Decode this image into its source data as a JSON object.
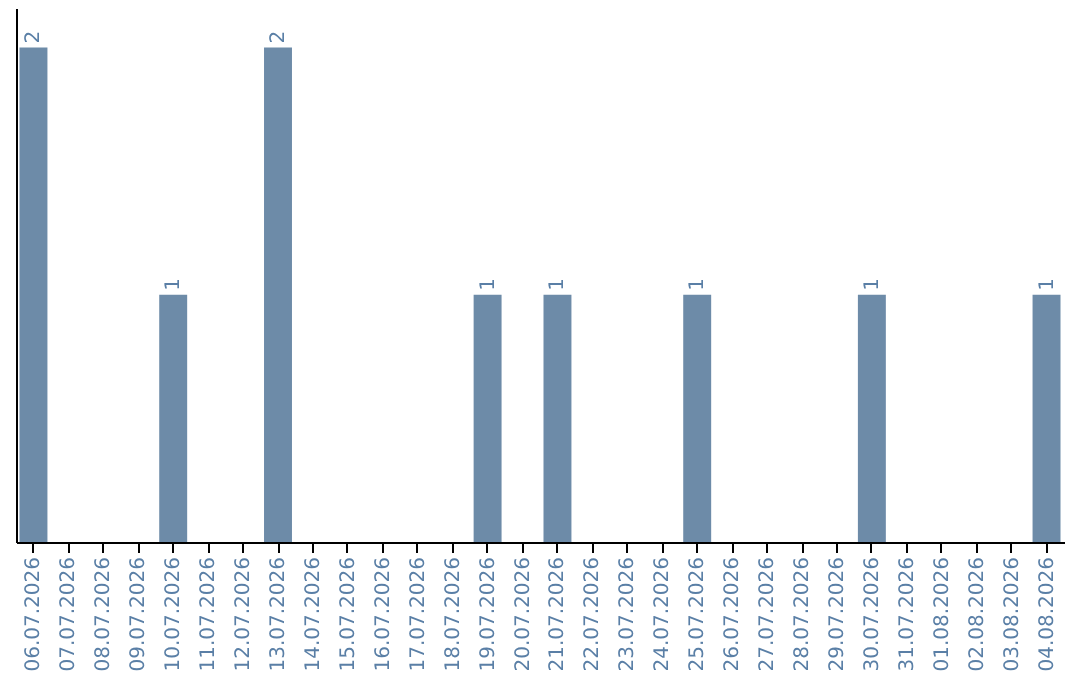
{
  "chart_data": {
    "type": "bar",
    "categories": [
      "06.07.2026",
      "07.07.2026",
      "08.07.2026",
      "09.07.2026",
      "10.07.2026",
      "11.07.2026",
      "12.07.2026",
      "13.07.2026",
      "14.07.2026",
      "15.07.2026",
      "16.07.2026",
      "17.07.2026",
      "18.07.2026",
      "19.07.2026",
      "20.07.2026",
      "21.07.2026",
      "22.07.2026",
      "23.07.2026",
      "24.07.2026",
      "25.07.2026",
      "26.07.2026",
      "27.07.2026",
      "28.07.2026",
      "29.07.2026",
      "30.07.2026",
      "31.07.2026",
      "01.08.2026",
      "02.08.2026",
      "03.08.2026",
      "04.08.2026"
    ],
    "values": [
      2,
      0,
      0,
      0,
      1,
      0,
      0,
      2,
      0,
      0,
      0,
      0,
      0,
      1,
      0,
      1,
      0,
      0,
      0,
      1,
      0,
      0,
      0,
      0,
      1,
      0,
      0,
      0,
      0,
      1
    ],
    "value_labels": [
      "2",
      null,
      null,
      null,
      "1",
      null,
      null,
      "2",
      null,
      null,
      null,
      null,
      null,
      "1",
      null,
      "1",
      null,
      null,
      null,
      "1",
      null,
      null,
      null,
      null,
      "1",
      null,
      null,
      null,
      null,
      "1"
    ],
    "color": "#6d8ba8",
    "tick_labels": "x",
    "grid": false
  }
}
